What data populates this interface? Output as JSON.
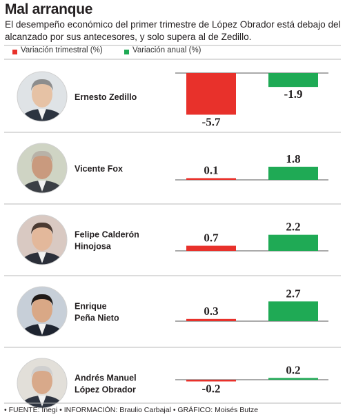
{
  "header": {
    "title": "Mal arranque",
    "subtitle": "El desempeño económico del primer trimestre de López Obrador está debajo del alcanzado por sus antecesores, y solo supera al de Zedillo."
  },
  "legend": {
    "quarterly": "Variación trimestral (%)",
    "annual": "Variación anual (%)"
  },
  "colors": {
    "quarterly": "#e8312b",
    "annual": "#1faa55",
    "separator": "#b8b8b8",
    "axis": "#555555"
  },
  "chart_data": {
    "type": "bar",
    "categories": [
      "Ernesto Zedillo",
      "Vicente Fox",
      "Felipe Calderón Hinojosa",
      "Enrique Peña Nieto",
      "Andrés Manuel López Obrador"
    ],
    "series": [
      {
        "name": "Variación trimestral (%)",
        "values": [
          -5.7,
          0.1,
          0.7,
          0.3,
          -0.2
        ]
      },
      {
        "name": "Variación anual (%)",
        "values": [
          -1.9,
          1.8,
          2.2,
          2.7,
          0.2
        ]
      }
    ],
    "value_labels": {
      "quarterly": [
        "-5.7",
        "0.1",
        "0.7",
        "0.3",
        "-0.2"
      ],
      "annual": [
        "-1.9",
        "1.8",
        "2.2",
        "2.7",
        "0.2"
      ]
    },
    "people": [
      {
        "name_lines": [
          "Ernesto Zedillo"
        ]
      },
      {
        "name_lines": [
          "Vicente Fox"
        ]
      },
      {
        "name_lines": [
          "Felipe Calderón",
          "Hinojosa"
        ]
      },
      {
        "name_lines": [
          "Enrique",
          "Peña Nieto"
        ]
      },
      {
        "name_lines": [
          "Andrés Manuel",
          "López Obrador"
        ]
      }
    ],
    "legend_placement": "top",
    "grid": false
  },
  "footer": {
    "source": "• FUENTE: Inegi • INFORMACIÓN: Braulio Carbajal • GRÁFICO: Moisés Butze"
  }
}
